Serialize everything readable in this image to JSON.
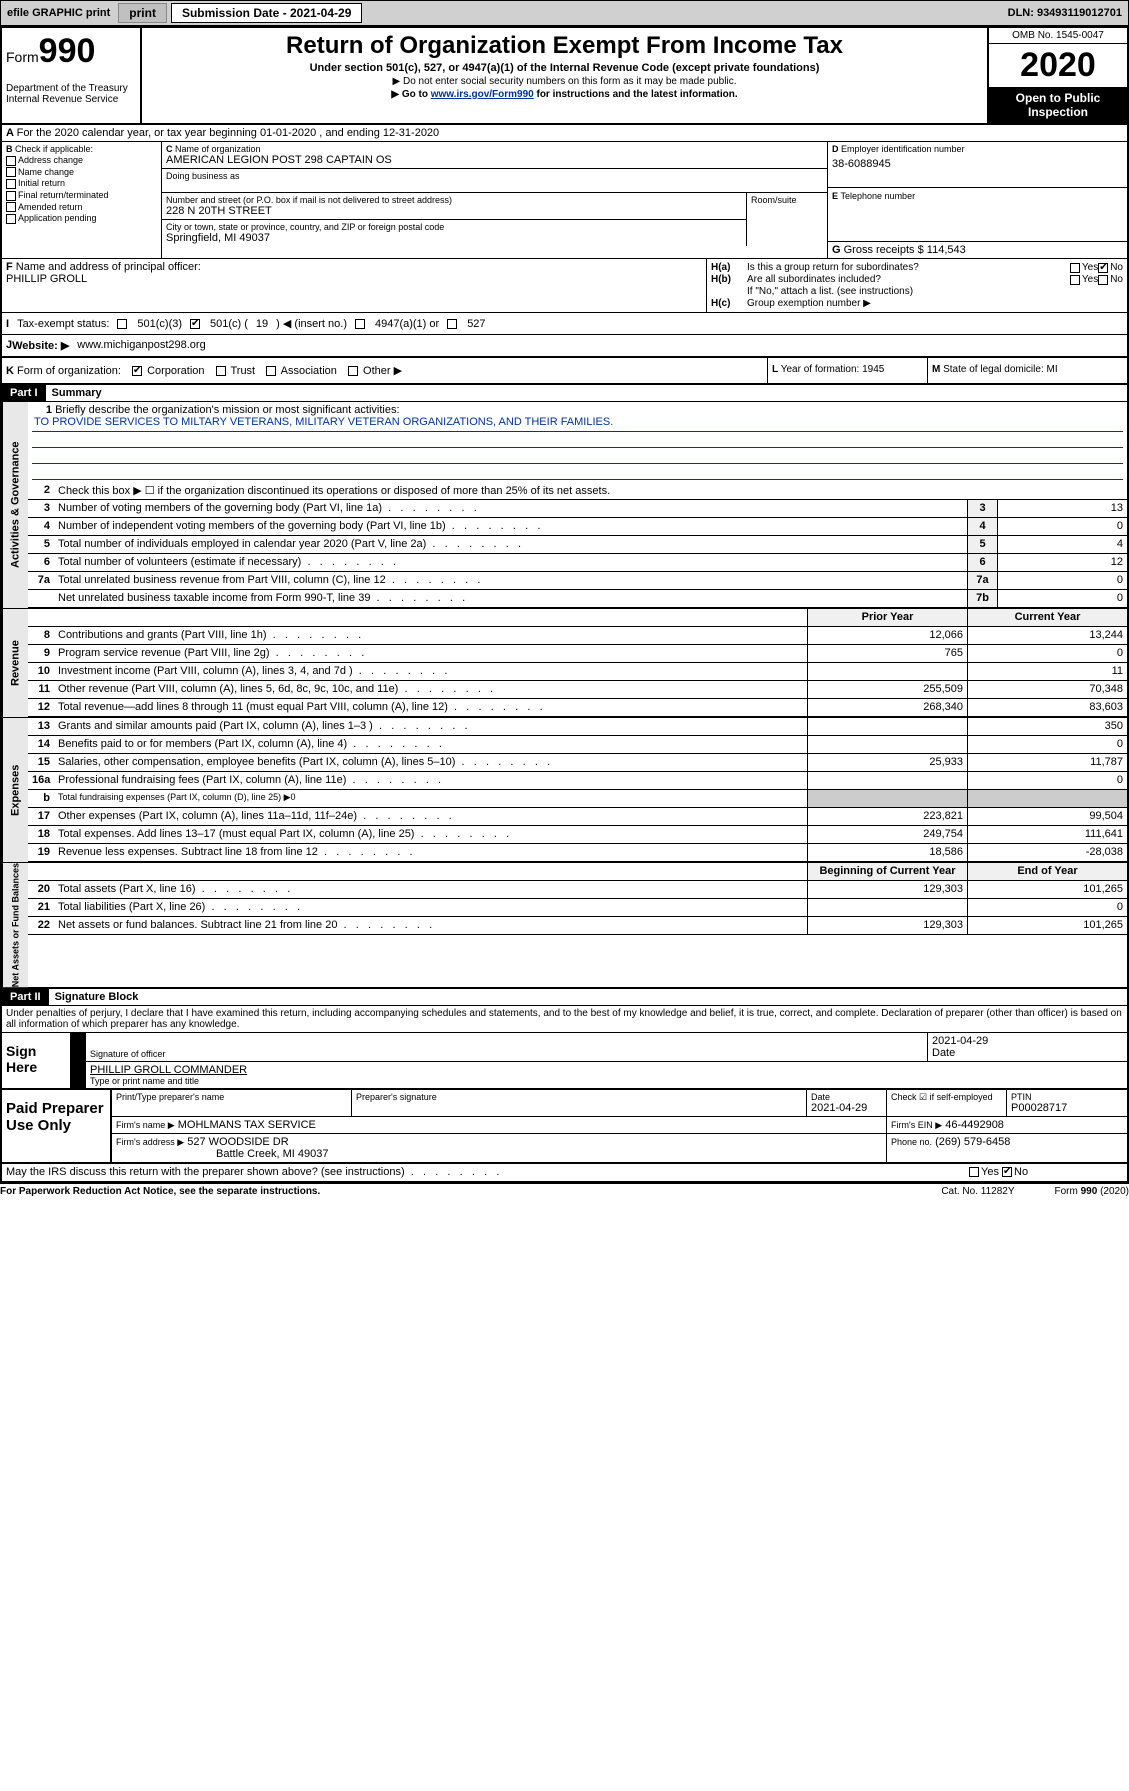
{
  "topbar": {
    "efile": "efile GRAPHIC print",
    "subdate_label": "Submission Date - 2021-04-29",
    "dln": "DLN: 93493119012701"
  },
  "header": {
    "form_word": "Form",
    "form_num": "990",
    "dept": "Department of the Treasury\nInternal Revenue Service",
    "title": "Return of Organization Exempt From Income Tax",
    "sub1": "Under section 501(c), 527, or 4947(a)(1) of the Internal Revenue Code (except private foundations)",
    "sub2": "▶ Do not enter social security numbers on this form as it may be made public.",
    "sub3_pre": "▶ Go to ",
    "sub3_link": "www.irs.gov/Form990",
    "sub3_post": " for instructions and the latest information.",
    "omb": "OMB No. 1545-0047",
    "year": "2020",
    "open": "Open to Public Inspection"
  },
  "A": {
    "text": "For the 2020 calendar year, or tax year beginning 01-01-2020    , and ending 12-31-2020"
  },
  "B": {
    "label": "Check if applicable:",
    "opts": [
      "Address change",
      "Name change",
      "Initial return",
      "Final return/terminated",
      "Amended return",
      "Application pending"
    ]
  },
  "C": {
    "name_label": "Name of organization",
    "name": "AMERICAN LEGION POST 298 CAPTAIN OS",
    "dba_label": "Doing business as",
    "street_label": "Number and street (or P.O. box if mail is not delivered to street address)",
    "street": "228 N 20TH STREET",
    "room_label": "Room/suite",
    "city_label": "City or town, state or province, country, and ZIP or foreign postal code",
    "city": "Springfield, MI  49037"
  },
  "D": {
    "label": "Employer identification number",
    "val": "38-6088945"
  },
  "E": {
    "label": "Telephone number"
  },
  "G": {
    "label": "Gross receipts $",
    "val": "114,543"
  },
  "F": {
    "label": "Name and address of principal officer:",
    "val": "PHILLIP GROLL"
  },
  "H": {
    "a": "Is this a group return for subordinates?",
    "b": "Are all subordinates included?",
    "b_note": "If \"No,\" attach a list. (see instructions)",
    "c": "Group exemption number ▶",
    "yes": "Yes",
    "no": "No"
  },
  "I": {
    "label": "Tax-exempt status:",
    "c3": "501(c)(3)",
    "c_pre": "501(c) (",
    "c_num": "19",
    "c_post": ") ◀ (insert no.)",
    "a1": "4947(a)(1) or",
    "s527": "527"
  },
  "J": {
    "label": "Website: ▶",
    "val": "www.michiganpost298.org"
  },
  "K": {
    "label": "Form of organization:",
    "opts": [
      "Corporation",
      "Trust",
      "Association",
      "Other ▶"
    ]
  },
  "L": {
    "label": "Year of formation:",
    "val": "1945"
  },
  "M": {
    "label": "State of legal domicile:",
    "val": "MI"
  },
  "part1": {
    "hdr": "Part I",
    "title": "Summary",
    "l1_label": "Briefly describe the organization's mission or most significant activities:",
    "l1_val": "TO PROVIDE SERVICES TO MILTARY VETERANS, MILITARY VETERAN ORGANIZATIONS, AND THEIR FAMILIES.",
    "l2": "Check this box ▶ ☐  if the organization discontinued its operations or disposed of more than 25% of its net assets.",
    "rows_top": [
      {
        "n": "3",
        "d": "Number of voting members of the governing body (Part VI, line 1a)",
        "box": "3",
        "v": "13"
      },
      {
        "n": "4",
        "d": "Number of independent voting members of the governing body (Part VI, line 1b)",
        "box": "4",
        "v": "0"
      },
      {
        "n": "5",
        "d": "Total number of individuals employed in calendar year 2020 (Part V, line 2a)",
        "box": "5",
        "v": "4"
      },
      {
        "n": "6",
        "d": "Total number of volunteers (estimate if necessary)",
        "box": "6",
        "v": "12"
      },
      {
        "n": "7a",
        "d": "Total unrelated business revenue from Part VIII, column (C), line 12",
        "box": "7a",
        "v": "0"
      },
      {
        "n": "",
        "d": "Net unrelated business taxable income from Form 990-T, line 39",
        "box": "7b",
        "v": "0"
      }
    ],
    "col_prior": "Prior Year",
    "col_curr": "Current Year",
    "rev": [
      {
        "n": "8",
        "d": "Contributions and grants (Part VIII, line 1h)",
        "p": "12,066",
        "c": "13,244"
      },
      {
        "n": "9",
        "d": "Program service revenue (Part VIII, line 2g)",
        "p": "765",
        "c": "0"
      },
      {
        "n": "10",
        "d": "Investment income (Part VIII, column (A), lines 3, 4, and 7d )",
        "p": "",
        "c": "11"
      },
      {
        "n": "11",
        "d": "Other revenue (Part VIII, column (A), lines 5, 6d, 8c, 9c, 10c, and 11e)",
        "p": "255,509",
        "c": "70,348"
      },
      {
        "n": "12",
        "d": "Total revenue—add lines 8 through 11 (must equal Part VIII, column (A), line 12)",
        "p": "268,340",
        "c": "83,603"
      }
    ],
    "exp": [
      {
        "n": "13",
        "d": "Grants and similar amounts paid (Part IX, column (A), lines 1–3 )",
        "p": "",
        "c": "350"
      },
      {
        "n": "14",
        "d": "Benefits paid to or for members (Part IX, column (A), line 4)",
        "p": "",
        "c": "0"
      },
      {
        "n": "15",
        "d": "Salaries, other compensation, employee benefits (Part IX, column (A), lines 5–10)",
        "p": "25,933",
        "c": "11,787"
      },
      {
        "n": "16a",
        "d": "Professional fundraising fees (Part IX, column (A), line 11e)",
        "p": "",
        "c": "0"
      },
      {
        "n": "b",
        "d": "Total fundraising expenses (Part IX, column (D), line 25) ▶0",
        "p": null,
        "c": null
      },
      {
        "n": "17",
        "d": "Other expenses (Part IX, column (A), lines 11a–11d, 11f–24e)",
        "p": "223,821",
        "c": "99,504"
      },
      {
        "n": "18",
        "d": "Total expenses. Add lines 13–17 (must equal Part IX, column (A), line 25)",
        "p": "249,754",
        "c": "111,641"
      },
      {
        "n": "19",
        "d": "Revenue less expenses. Subtract line 18 from line 12",
        "p": "18,586",
        "c": "-28,038"
      }
    ],
    "col_beg": "Beginning of Current Year",
    "col_end": "End of Year",
    "net": [
      {
        "n": "20",
        "d": "Total assets (Part X, line 16)",
        "p": "129,303",
        "c": "101,265"
      },
      {
        "n": "21",
        "d": "Total liabilities (Part X, line 26)",
        "p": "",
        "c": "0"
      },
      {
        "n": "22",
        "d": "Net assets or fund balances. Subtract line 21 from line 20",
        "p": "129,303",
        "c": "101,265"
      }
    ],
    "vtabs": [
      "Activities & Governance",
      "Revenue",
      "Expenses",
      "Net Assets or Fund Balances"
    ]
  },
  "part2": {
    "hdr": "Part II",
    "title": "Signature Block",
    "decl": "Under penalties of perjury, I declare that I have examined this return, including accompanying schedules and statements, and to the best of my knowledge and belief, it is true, correct, and complete. Declaration of preparer (other than officer) is based on all information of which preparer has any knowledge.",
    "sign_here": "Sign Here",
    "sig_officer": "Signature of officer",
    "date": "Date",
    "date_val": "2021-04-29",
    "name_title": "PHILLIP GROLL  COMMANDER",
    "name_label": "Type or print name and title",
    "paid": "Paid Preparer Use Only",
    "prep_name_label": "Print/Type preparer's name",
    "prep_sig_label": "Preparer's signature",
    "prep_date_label": "Date",
    "prep_date": "2021-04-29",
    "check_if": "Check ☑ if self-employed",
    "ptin_label": "PTIN",
    "ptin": "P00028717",
    "firm_name_label": "Firm's name   ▶",
    "firm_name": "MOHLMANS TAX SERVICE",
    "firm_ein_label": "Firm's EIN ▶",
    "firm_ein": "46-4492908",
    "firm_addr_label": "Firm's address ▶",
    "firm_addr": "527 WOODSIDE DR",
    "firm_city": "Battle Creek, MI  49037",
    "phone_label": "Phone no.",
    "phone": "(269) 579-6458",
    "discuss": "May the IRS discuss this return with the preparer shown above? (see instructions)"
  },
  "footer": {
    "l": "For Paperwork Reduction Act Notice, see the separate instructions.",
    "c": "Cat. No. 11282Y",
    "r": "Form 990 (2020)"
  }
}
